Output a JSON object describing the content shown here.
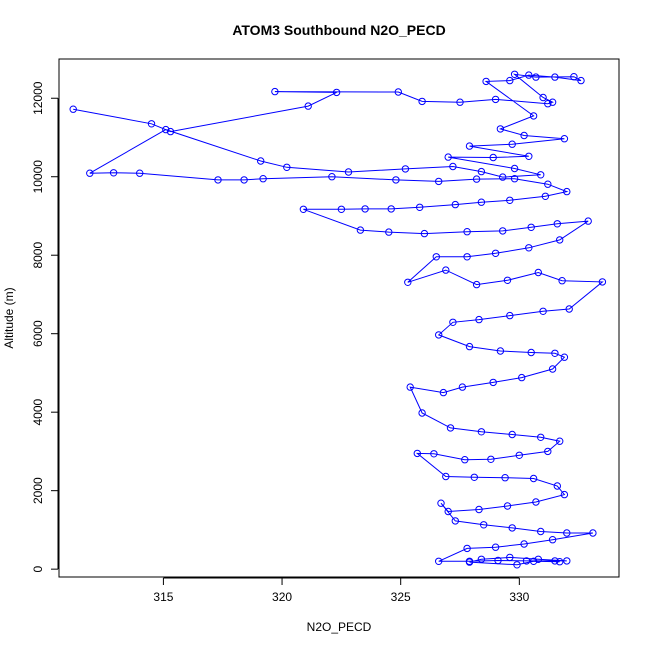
{
  "chart_data": {
    "type": "line",
    "title": "ATOM3 Southbound N2O_PECD",
    "xlabel": "N2O_PECD",
    "ylabel": "Altitude (m)",
    "xlim": [
      310.6,
      334.2
    ],
    "ylim": [
      -200,
      13000
    ],
    "x_ticks": [
      315,
      320,
      325,
      330
    ],
    "y_ticks": [
      0,
      2000,
      4000,
      6000,
      8000,
      10000,
      12000
    ],
    "series_color": "#0000ff",
    "marker": "open-circle",
    "grid": false,
    "points": [
      [
        311.2,
        11720
      ],
      [
        314.5,
        11350
      ],
      [
        315.3,
        11150
      ],
      [
        321.1,
        11800
      ],
      [
        322.3,
        12150
      ],
      [
        319.7,
        12170
      ],
      [
        324.9,
        12160
      ],
      [
        325.9,
        11920
      ],
      [
        327.5,
        11900
      ],
      [
        329.0,
        11970
      ],
      [
        331.2,
        11860
      ],
      [
        331.4,
        11900
      ],
      [
        331.0,
        12020
      ],
      [
        329.8,
        12610
      ],
      [
        330.7,
        12540
      ],
      [
        332.3,
        12550
      ],
      [
        332.6,
        12450
      ],
      [
        331.5,
        12540
      ],
      [
        330.4,
        12590
      ],
      [
        329.6,
        12450
      ],
      [
        328.6,
        12430
      ],
      [
        330.6,
        11550
      ],
      [
        329.2,
        11220
      ],
      [
        330.2,
        11050
      ],
      [
        331.9,
        10970
      ],
      [
        329.7,
        10830
      ],
      [
        327.9,
        10780
      ],
      [
        330.4,
        10520
      ],
      [
        328.9,
        10490
      ],
      [
        327.0,
        10500
      ],
      [
        329.8,
        10210
      ],
      [
        330.9,
        10050
      ],
      [
        329.3,
        9990
      ],
      [
        328.4,
        10130
      ],
      [
        327.2,
        10260
      ],
      [
        325.2,
        10200
      ],
      [
        322.8,
        10120
      ],
      [
        320.2,
        10240
      ],
      [
        319.1,
        10400
      ],
      [
        315.1,
        11200
      ],
      [
        311.9,
        10090
      ],
      [
        312.9,
        10100
      ],
      [
        314.0,
        10090
      ],
      [
        317.3,
        9920
      ],
      [
        318.4,
        9920
      ],
      [
        319.2,
        9950
      ],
      [
        322.1,
        10000
      ],
      [
        324.8,
        9920
      ],
      [
        326.6,
        9880
      ],
      [
        328.2,
        9940
      ],
      [
        329.8,
        9950
      ],
      [
        331.2,
        9810
      ],
      [
        332.0,
        9620
      ],
      [
        331.1,
        9500
      ],
      [
        329.6,
        9400
      ],
      [
        328.4,
        9350
      ],
      [
        327.3,
        9290
      ],
      [
        325.8,
        9220
      ],
      [
        324.6,
        9180
      ],
      [
        323.5,
        9180
      ],
      [
        322.5,
        9170
      ],
      [
        320.9,
        9170
      ],
      [
        323.3,
        8640
      ],
      [
        324.5,
        8590
      ],
      [
        326.0,
        8550
      ],
      [
        327.8,
        8600
      ],
      [
        329.3,
        8620
      ],
      [
        330.5,
        8710
      ],
      [
        331.6,
        8800
      ],
      [
        332.9,
        8870
      ],
      [
        331.7,
        8390
      ],
      [
        330.4,
        8190
      ],
      [
        329.0,
        8050
      ],
      [
        327.8,
        7960
      ],
      [
        326.5,
        7960
      ],
      [
        325.3,
        7310
      ],
      [
        326.9,
        7620
      ],
      [
        328.2,
        7250
      ],
      [
        329.5,
        7360
      ],
      [
        330.8,
        7560
      ],
      [
        331.8,
        7350
      ],
      [
        333.5,
        7320
      ],
      [
        332.1,
        6630
      ],
      [
        331.0,
        6570
      ],
      [
        329.6,
        6460
      ],
      [
        328.3,
        6360
      ],
      [
        327.2,
        6290
      ],
      [
        326.6,
        5970
      ],
      [
        327.9,
        5670
      ],
      [
        329.2,
        5560
      ],
      [
        330.5,
        5520
      ],
      [
        331.5,
        5500
      ],
      [
        331.9,
        5400
      ],
      [
        331.4,
        5100
      ],
      [
        330.1,
        4880
      ],
      [
        328.9,
        4760
      ],
      [
        327.6,
        4640
      ],
      [
        326.8,
        4500
      ],
      [
        325.4,
        4640
      ],
      [
        325.9,
        3980
      ],
      [
        327.1,
        3600
      ],
      [
        328.4,
        3500
      ],
      [
        329.7,
        3430
      ],
      [
        330.9,
        3360
      ],
      [
        331.7,
        3260
      ],
      [
        331.2,
        3000
      ],
      [
        330.0,
        2900
      ],
      [
        328.8,
        2800
      ],
      [
        327.7,
        2790
      ],
      [
        326.4,
        2940
      ],
      [
        325.7,
        2950
      ],
      [
        326.9,
        2360
      ],
      [
        328.1,
        2340
      ],
      [
        329.4,
        2330
      ],
      [
        330.6,
        2310
      ],
      [
        331.6,
        2120
      ],
      [
        331.9,
        1900
      ],
      [
        330.7,
        1710
      ],
      [
        329.5,
        1610
      ],
      [
        328.3,
        1520
      ],
      [
        327.0,
        1470
      ],
      [
        326.7,
        1680
      ],
      [
        327.3,
        1230
      ],
      [
        328.5,
        1130
      ],
      [
        329.7,
        1050
      ],
      [
        330.9,
        960
      ],
      [
        332.0,
        920
      ],
      [
        333.1,
        920
      ],
      [
        331.4,
        750
      ],
      [
        330.2,
        640
      ],
      [
        329.0,
        560
      ],
      [
        327.8,
        530
      ],
      [
        326.6,
        200
      ],
      [
        327.9,
        200
      ],
      [
        329.1,
        220
      ],
      [
        330.3,
        210
      ],
      [
        331.5,
        210
      ],
      [
        332.0,
        210
      ],
      [
        330.8,
        250
      ],
      [
        329.6,
        300
      ],
      [
        328.4,
        250
      ],
      [
        327.9,
        180
      ],
      [
        329.9,
        110
      ],
      [
        330.6,
        200
      ],
      [
        331.7,
        190
      ]
    ]
  }
}
